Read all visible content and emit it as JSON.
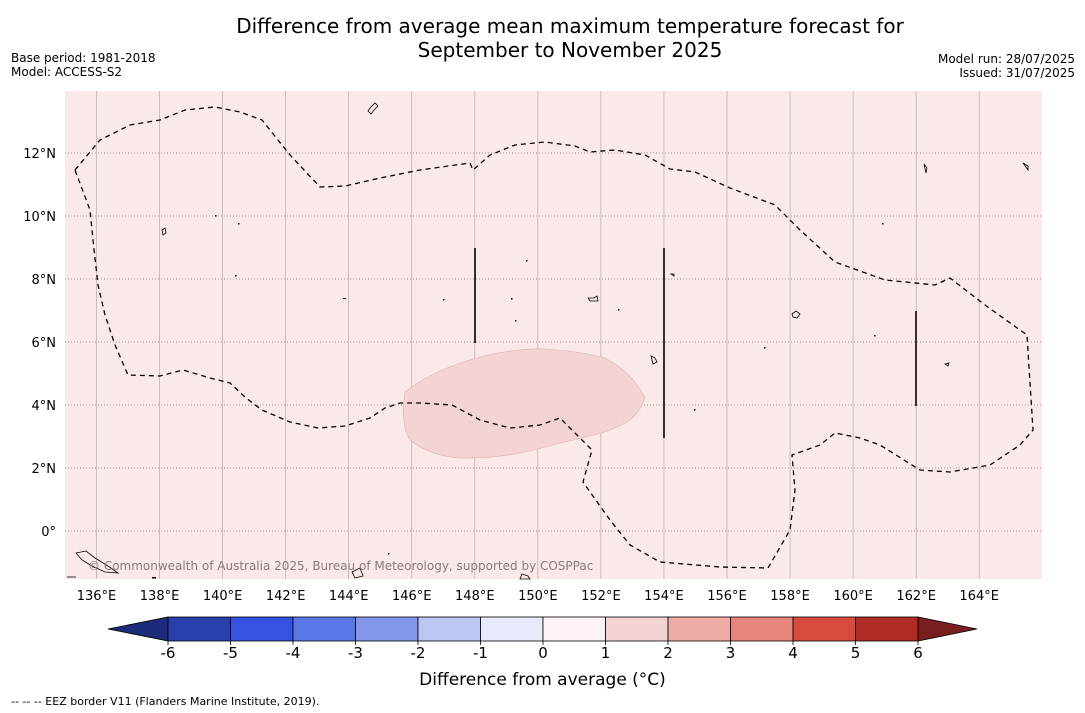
{
  "header": {
    "title_line1": "Difference from average mean maximum temperature forecast for",
    "title_line2": "September to November 2025",
    "base_period": "Base period: 1981-2018",
    "model": "Model: ACCESS-S2",
    "model_run": "Model run: 28/07/2025",
    "issued": "Issued: 31/07/2025"
  },
  "map": {
    "background_color": "#fbe9e9",
    "anomaly_patch_color": "#f3d3d3",
    "lon_ticks": [
      "136°E",
      "138°E",
      "140°E",
      "142°E",
      "144°E",
      "146°E",
      "148°E",
      "150°E",
      "152°E",
      "154°E",
      "156°E",
      "158°E",
      "160°E",
      "162°E",
      "164°E"
    ],
    "lat_ticks": [
      "12°N",
      "10°N",
      "8°N",
      "6°N",
      "4°N",
      "2°N",
      "0°"
    ],
    "copyright": "© Commonwealth of Australia 2025, Bureau of Meteorology, supported by COSPPac"
  },
  "colorbar": {
    "title": "Difference from average (°C)",
    "tick_labels": [
      "-6",
      "-5",
      "-4",
      "-3",
      "-2",
      "-1",
      "0",
      "1",
      "2",
      "3",
      "4",
      "5",
      "6"
    ],
    "under_color": "#1b2b7a",
    "over_color": "#7a1f1f",
    "colors": [
      "#2a3fae",
      "#3353e0",
      "#5a77e6",
      "#8496ea",
      "#bcc6f3",
      "#e6eafa",
      "#fdf2f2",
      "#f3d3d3",
      "#edaca6",
      "#e6857a",
      "#d94a3e",
      "#b02b25"
    ]
  },
  "footnote": "--  --  -- EEZ border V11 (Flanders Marine Institute, 2019)."
}
